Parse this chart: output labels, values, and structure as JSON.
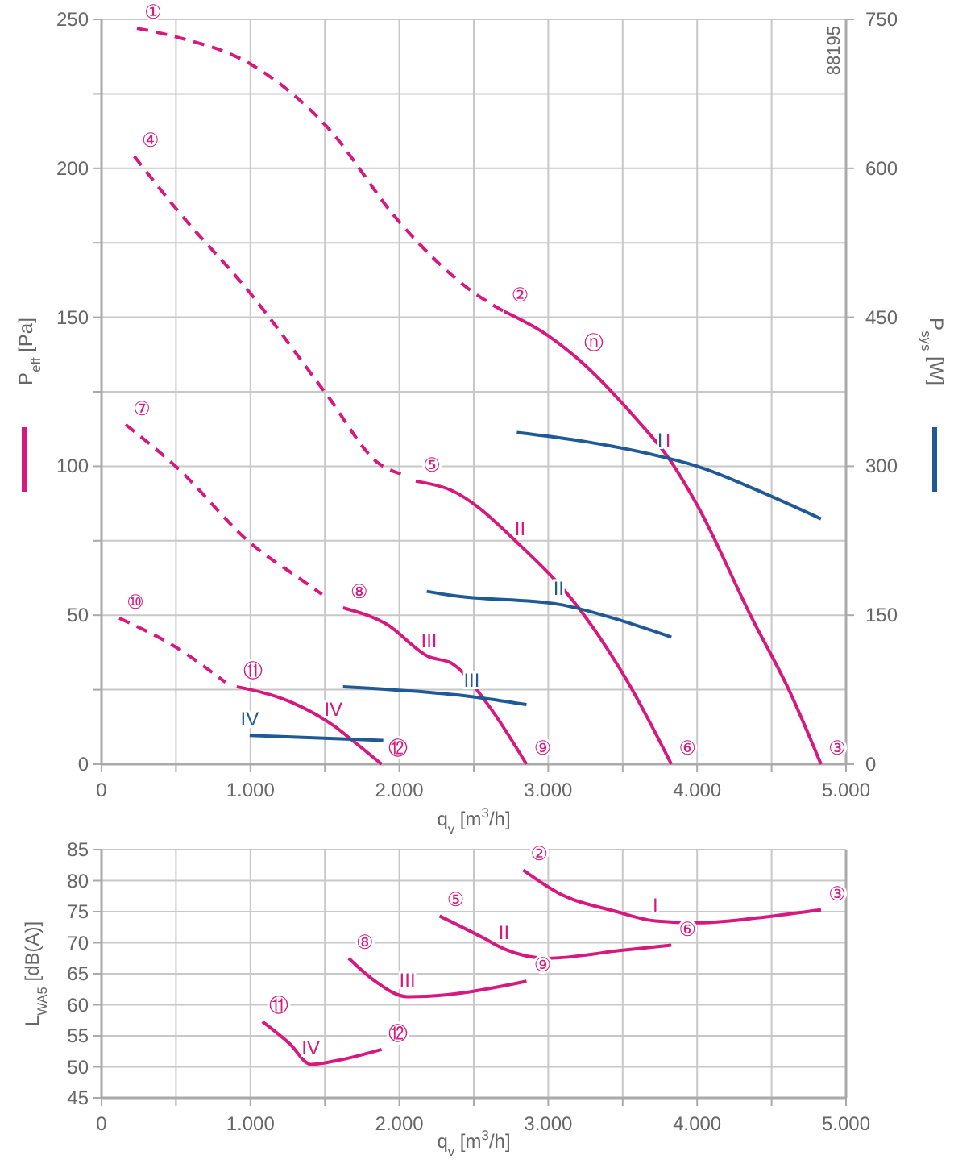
{
  "chart_data": [
    {
      "type": "line",
      "xlabel": "q$_{v}$ [m$^{3}$/h]",
      "ylabel": "P$_{eff}$ [Pa]",
      "y2label": "P$_{sys}$ [W]",
      "xlim": [
        0,
        5000
      ],
      "ylim": [
        0,
        250
      ],
      "y2lim": [
        0,
        750
      ],
      "xticks": [
        0,
        {
          "value": 500,
          "label": null
        },
        {
          "value": 1000,
          "label": "1.000"
        },
        {
          "value": 1500,
          "label": null
        },
        {
          "value": 2000,
          "label": "2.000"
        },
        {
          "value": 2500,
          "label": null
        },
        {
          "value": 3000,
          "label": "3.000"
        },
        {
          "value": 3500,
          "label": null
        },
        {
          "value": 4000,
          "label": "4.000"
        },
        {
          "value": 4500,
          "label": null
        },
        {
          "value": 5000,
          "label": "5.000"
        }
      ],
      "yticks": [
        0,
        {
          "value": 25,
          "label": null
        },
        50,
        {
          "value": 75,
          "label": null
        },
        100,
        {
          "value": 125,
          "label": null
        },
        150,
        {
          "value": 175,
          "label": null
        },
        200,
        {
          "value": 225,
          "label": null
        },
        250
      ],
      "y2ticks": [
        0,
        150,
        300,
        450,
        600,
        750
      ],
      "grid": true,
      "legend": false,
      "series": [
        {
          "color": "#d6187f",
          "line_style": "dashed",
          "x": [
            238,
            508,
            1000,
            1513,
            2000,
            2508,
            2703
          ],
          "values": [
            247,
            244,
            235,
            214,
            182,
            158,
            152
          ]
        },
        {
          "name": "I",
          "color": "#d6187f",
          "line_style": "solid",
          "x": [
            2703,
            2995,
            3200,
            3589,
            3805,
            4000,
            4368,
            4616,
            4832
          ],
          "values": [
            152,
            144,
            136,
            116,
            103,
            87,
            49,
            25,
            0
          ]
        },
        {
          "color": "#d6187f",
          "line_style": "dashed",
          "x": [
            220,
            508,
            1000,
            1513,
            1860,
            2040
          ],
          "values": [
            204,
            186,
            158,
            124,
            101,
            97
          ]
        },
        {
          "name": "II",
          "color": "#d6187f",
          "line_style": "solid",
          "x": [
            2110,
            2346,
            2811,
            3211,
            3535,
            3827
          ],
          "values": [
            95,
            92,
            73.5,
            52,
            27.5,
            0
          ]
        },
        {
          "color": "#d6187f",
          "line_style": "dashed",
          "x": [
            162,
            508,
            1005,
            1340,
            1481
          ],
          "values": [
            114,
            99.5,
            74,
            62,
            57
          ]
        },
        {
          "name": "III",
          "color": "#d6187f",
          "line_style": "solid",
          "x": [
            1622,
            1914,
            2200,
            2346,
            2595,
            2854
          ],
          "values": [
            52.5,
            47,
            36,
            34,
            20,
            0
          ]
        },
        {
          "color": "#d6187f",
          "line_style": "dashed",
          "x": [
            119,
            508,
            832
          ],
          "values": [
            49,
            39,
            27.5
          ]
        },
        {
          "name": "IV",
          "color": "#d6187f",
          "line_style": "solid",
          "x": [
            908,
            1265,
            1557,
            1697,
            1881
          ],
          "values": [
            26,
            21,
            13,
            7.5,
            0
          ]
        },
        {
          "name": "I",
          "color": "#1f5a96",
          "axis": "y2",
          "line_style": "solid",
          "x": [
            2789,
            3243,
            3751,
            4000,
            4432,
            4832
          ],
          "values": [
            334,
            325,
            310,
            300,
            274,
            247
          ]
        },
        {
          "name": "II",
          "color": "#1f5a96",
          "axis": "y2",
          "line_style": "solid",
          "x": [
            2184,
            2346,
            3070,
            3503,
            3827
          ],
          "values": [
            174,
            170,
            161,
            144,
            128
          ]
        },
        {
          "name": "III",
          "color": "#1f5a96",
          "axis": "y2",
          "line_style": "solid",
          "x": [
            1622,
            2486,
            2854
          ],
          "values": [
            78,
            68,
            60
          ]
        },
        {
          "name": "IV",
          "color": "#1f5a96",
          "axis": "y2",
          "line_style": "solid",
          "x": [
            995,
            1892
          ],
          "values": [
            29,
            24
          ]
        }
      ],
      "annotations": [
        {
          "text": "①",
          "x": 238,
          "y": 247
        },
        {
          "text": "②",
          "x": 2703,
          "y": 152
        },
        {
          "text": "ⓝ",
          "x": 3200,
          "y": 136
        },
        {
          "text": "③",
          "x": 4832,
          "y": 0
        },
        {
          "text": "④",
          "x": 220,
          "y": 204
        },
        {
          "text": "⑤",
          "x": 2110,
          "y": 95
        },
        {
          "text": "⑥",
          "x": 3827,
          "y": 0
        },
        {
          "text": "⑦",
          "x": 162,
          "y": 114
        },
        {
          "text": "⑧",
          "x": 1622,
          "y": 52.5
        },
        {
          "text": "⑨",
          "x": 2854,
          "y": 0
        },
        {
          "text": "⑩",
          "x": 119,
          "y": 49
        },
        {
          "text": "⑪",
          "x": 908,
          "y": 26
        },
        {
          "text": "⑫",
          "x": 1881,
          "y": 0
        },
        "88195"
      ]
    },
    {
      "type": "line",
      "xlabel": "q$_{v}$ [m$^{3}$/h]",
      "ylabel": "L$_{WA5}$ [dB(A)]",
      "xlim": [
        0,
        5000
      ],
      "ylim": [
        45,
        85
      ],
      "xticks": [
        0,
        {
          "value": 500,
          "label": null
        },
        {
          "value": 1000,
          "label": "1.000"
        },
        {
          "value": 1500,
          "label": null
        },
        {
          "value": 2000,
          "label": "2.000"
        },
        {
          "value": 2500,
          "label": null
        },
        {
          "value": 3000,
          "label": "3.000"
        },
        {
          "value": 3500,
          "label": null
        },
        {
          "value": 4000,
          "label": "4.000"
        },
        {
          "value": 4500,
          "label": null
        },
        {
          "value": 5000,
          "label": "5.000"
        }
      ],
      "yticks": [
        45,
        50,
        55,
        60,
        65,
        70,
        75,
        80,
        85
      ],
      "grid": true,
      "legend": false,
      "series": [
        {
          "name": "I",
          "color": "#d6187f",
          "line_style": "solid",
          "x": [
            2832,
            3070,
            3459,
            3719,
            4000,
            4508,
            4832
          ],
          "values": [
            81.7,
            78,
            75,
            73.5,
            73.2,
            74.3,
            75.3
          ]
        },
        {
          "name": "II",
          "color": "#d6187f",
          "line_style": "solid",
          "x": [
            2270,
            2562,
            2703,
            2995,
            3503,
            3827
          ],
          "values": [
            74.3,
            70.8,
            69,
            67.5,
            68.8,
            69.6
          ]
        },
        {
          "name": "III",
          "color": "#d6187f",
          "line_style": "solid",
          "x": [
            1660,
            1838,
            2054,
            2310,
            2854
          ],
          "values": [
            67.5,
            63.8,
            61.3,
            61.6,
            63.8
          ]
        },
        {
          "name": "IV",
          "color": "#d6187f",
          "line_style": "solid",
          "x": [
            1081,
            1265,
            1405,
            1557,
            1881
          ],
          "values": [
            57.3,
            53.7,
            50.4,
            50.9,
            52.8
          ]
        }
      ],
      "annotations": [
        {
          "text": "②",
          "x": 2832,
          "y": 81.7
        },
        {
          "text": "③",
          "x": 4832,
          "y": 75.3
        },
        {
          "text": "⑤",
          "x": 2270,
          "y": 74.3
        },
        {
          "text": "⑥",
          "x": 3827,
          "y": 69.6
        },
        {
          "text": "⑧",
          "x": 1660,
          "y": 67.5
        },
        {
          "text": "⑨",
          "x": 2854,
          "y": 63.8
        },
        {
          "text": "⑪",
          "x": 1081,
          "y": 57.3
        },
        {
          "text": "⑫",
          "x": 1881,
          "y": 52.8
        }
      ]
    }
  ]
}
